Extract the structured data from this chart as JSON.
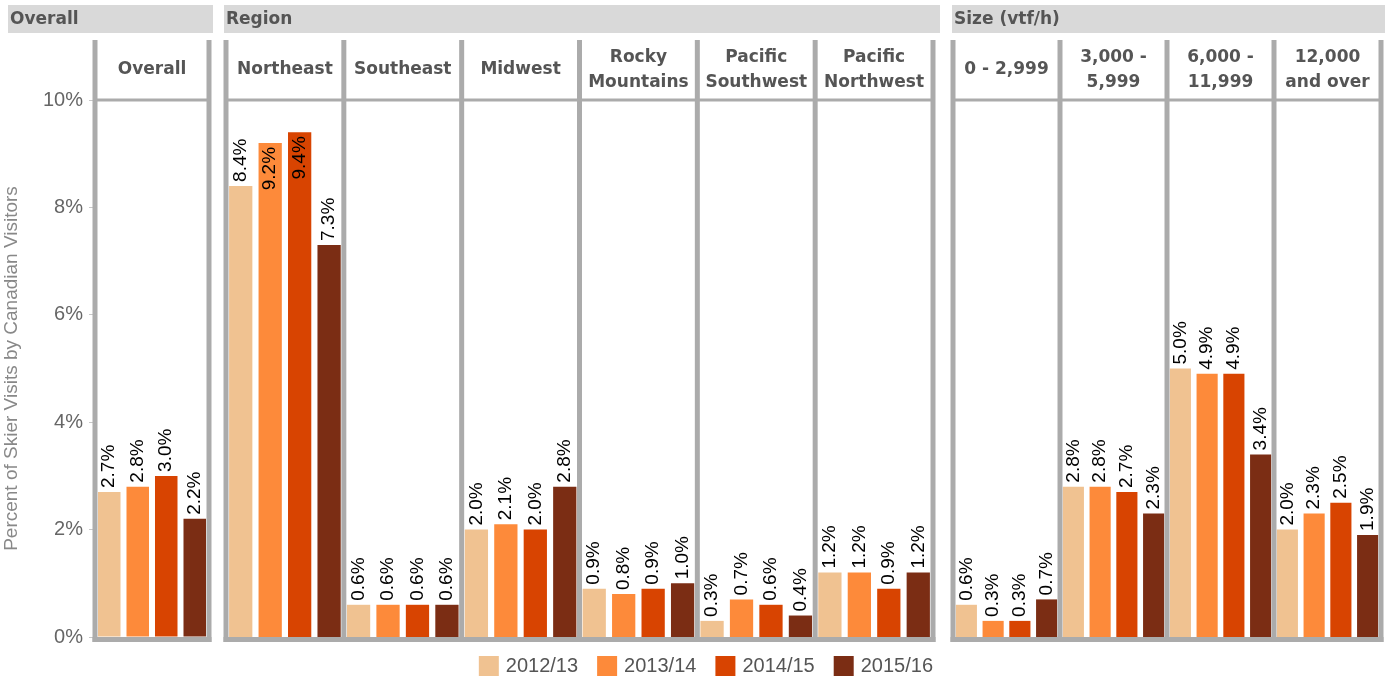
{
  "chart_data": [
    {
      "type": "bar",
      "title": "Overall",
      "categories": [
        "Overall"
      ],
      "ylabel": "Percent of Skier Visits by Canadian Visitors",
      "ylim": [
        0,
        10
      ],
      "yticks": [
        {
          "value": 0,
          "label": "0%"
        },
        {
          "value": 2,
          "label": "2%"
        },
        {
          "value": 4,
          "label": "4%"
        },
        {
          "value": 6,
          "label": "6%"
        },
        {
          "value": 8,
          "label": "8%"
        },
        {
          "value": 10,
          "label": "10%"
        }
      ],
      "series": [
        {
          "color": "#f0c291",
          "values": [
            2.7
          ],
          "value_labels": [
            "2.7%"
          ]
        },
        {
          "color": "#fd8a3a",
          "values": [
            2.8
          ],
          "value_labels": [
            "2.8%"
          ]
        },
        {
          "color": "#d84401",
          "values": [
            3.0
          ],
          "value_labels": [
            "3.0%"
          ]
        },
        {
          "color": "#7b2d14",
          "values": [
            2.2
          ],
          "value_labels": [
            "2.2%"
          ]
        }
      ]
    },
    {
      "type": "bar",
      "title": "Region",
      "categories": [
        "Northeast",
        "Southeast",
        "Midwest",
        "Rocky Mountains",
        "Pacific Southwest",
        "Pacific Northwest"
      ],
      "ylim": [
        0,
        10
      ],
      "tick_labels": "x",
      "legend": "bottom right",
      "series": [
        {
          "name": "2012/13",
          "color": "#f0c291",
          "values": [
            8.4,
            0.6,
            2.0,
            0.9,
            0.3,
            1.2
          ],
          "value_labels": [
            "8.4%",
            "0.6%",
            "2.0%",
            "0.9%",
            "0.3%",
            "1.2%"
          ]
        },
        {
          "name": "2013/14",
          "color": "#fd8a3a",
          "values": [
            9.2,
            0.6,
            2.1,
            0.8,
            0.7,
            1.2
          ],
          "value_labels": [
            "9.2%",
            "0.6%",
            "2.1%",
            "0.8%",
            "0.7%",
            "1.2%"
          ]
        },
        {
          "name": "2014/15",
          "color": "#d84401",
          "values": [
            9.4,
            0.6,
            2.0,
            0.9,
            0.6,
            0.9
          ],
          "value_labels": [
            "9.4%",
            "0.6%",
            "2.0%",
            "0.9%",
            "0.6%",
            "0.9%"
          ]
        },
        {
          "name": "2015/16",
          "color": "#7b2d14",
          "values": [
            7.3,
            0.6,
            2.8,
            1.0,
            0.4,
            1.2
          ],
          "value_labels": [
            "7.3%",
            "0.6%",
            "2.8%",
            "1.0%",
            "0.4%",
            "1.2%"
          ]
        }
      ]
    },
    {
      "type": "bar",
      "title": "Size (vtf/h)",
      "categories": [
        "0 - 2,999",
        "3,000 - 5,999",
        "6,000 - 11,999",
        "12,000 and over"
      ],
      "ylim": [
        0,
        10
      ],
      "tick_labels": "x",
      "series": [
        {
          "color": "#f0c291",
          "values": [
            0.6,
            2.8,
            5.0,
            2.0
          ],
          "value_labels": [
            "0.6%",
            "2.8%",
            "5.0%",
            "2.0%"
          ]
        },
        {
          "color": "#fd8a3a",
          "values": [
            0.3,
            2.8,
            4.9,
            2.3
          ],
          "value_labels": [
            "0.3%",
            "2.8%",
            "4.9%",
            "2.3%"
          ]
        },
        {
          "color": "#d84401",
          "values": [
            0.3,
            2.7,
            4.9,
            2.5
          ],
          "value_labels": [
            "0.3%",
            "2.7%",
            "4.9%",
            "2.5%"
          ]
        },
        {
          "color": "#7b2d14",
          "values": [
            0.7,
            2.3,
            3.4,
            1.9
          ],
          "value_labels": [
            "0.7%",
            "2.3%",
            "3.4%",
            "1.9%"
          ]
        }
      ]
    }
  ]
}
